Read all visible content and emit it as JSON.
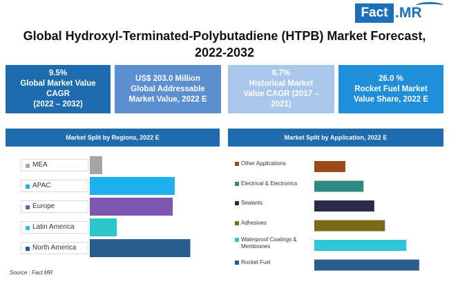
{
  "logo": {
    "fact": "Fact",
    "mr": ".MR"
  },
  "title": "Global Hydroxyl-Terminated-Polybutadiene (HTPB) Market Forecast, 2022-2032",
  "kpis": [
    {
      "value": "9.5%",
      "label1": "Global Market Value",
      "label2": "CAGR",
      "label3": "(2022 – 2032)"
    },
    {
      "value": "US$ 203.0 Million",
      "label1": "Global Addressable",
      "label2": "Market Value, 2022 E",
      "label3": ""
    },
    {
      "value": "6.7%",
      "label1": "Historical Market",
      "label2": "Value CAGR (2017 –",
      "label3": "2021)"
    },
    {
      "value": "26.0 %",
      "label1": "Rocket Fuel Market",
      "label2": "Value Share, 2022 E",
      "label3": ""
    }
  ],
  "chart_data": [
    {
      "type": "bar",
      "orientation": "horizontal",
      "title": "Market Split by Regions, 2022 E",
      "categories": [
        "MEA",
        "APAC",
        "Europe",
        "Latin America",
        "North America"
      ],
      "values": [
        12,
        82,
        80,
        26,
        97
      ],
      "colors": [
        "#a6a6a6",
        "#1fb0f0",
        "#7e58b0",
        "#2cc5c9",
        "#2b5c8e"
      ],
      "xlim": [
        0,
        100
      ],
      "grid": false,
      "legend": "left"
    },
    {
      "type": "bar",
      "orientation": "horizontal",
      "title": "Market Split by Application, 2022 E",
      "categories": [
        "Other Applications",
        "Electrical & Electronics",
        "Sealants",
        "Adhesives",
        "Waterproof Coatings & Membranes",
        "Rocket Fuel"
      ],
      "values": [
        29,
        46,
        56,
        66,
        86,
        98
      ],
      "colors": [
        "#9c4a1a",
        "#2c8a82",
        "#2c2a4a",
        "#7b6a1a",
        "#30c6d8",
        "#2b5c8e"
      ],
      "xlim": [
        0,
        100
      ],
      "grid": false,
      "legend": "left"
    }
  ],
  "source": "Source : Fact.MR"
}
